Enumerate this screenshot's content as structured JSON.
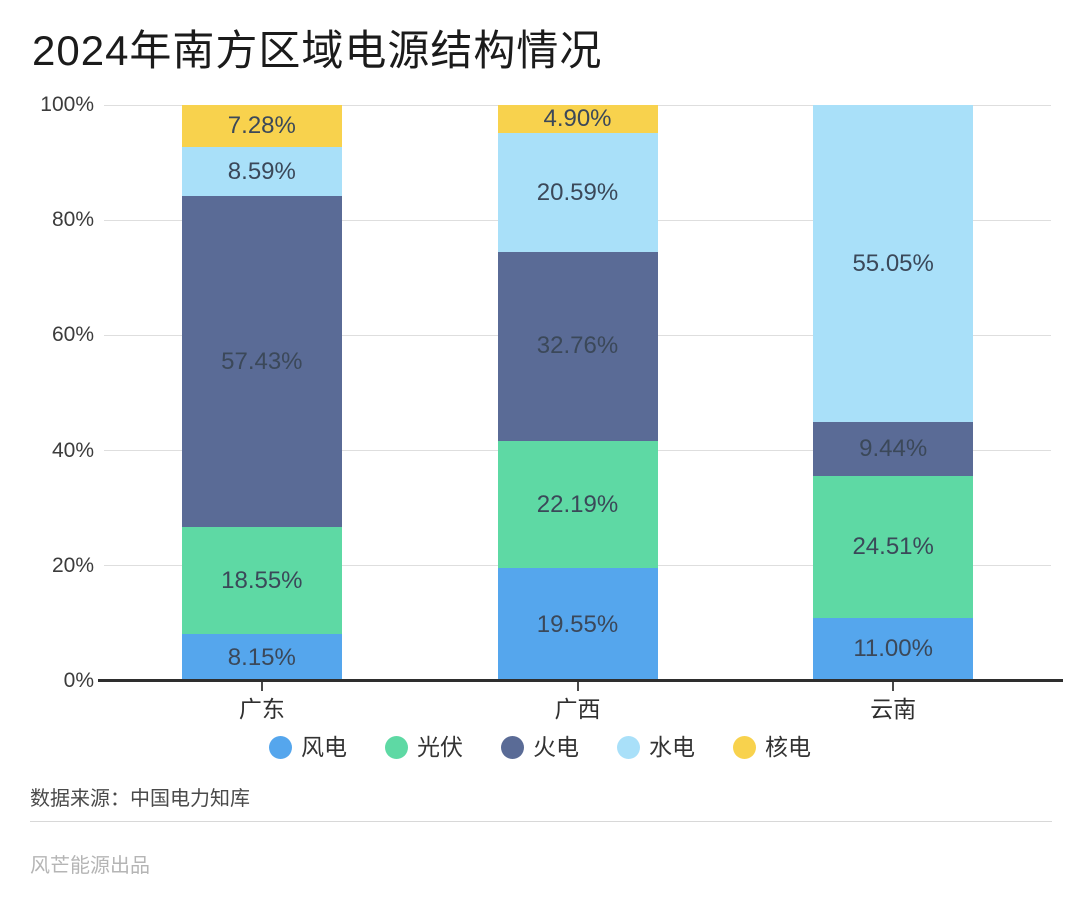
{
  "chart_data": {
    "type": "bar",
    "stacked": true,
    "title": "2024年南方区域电源结构情况",
    "categories": [
      "广东",
      "广西",
      "云南"
    ],
    "series": [
      {
        "key": "wind",
        "name": "风电",
        "color": "#55A6ED",
        "values": [
          8.15,
          19.55,
          11.0
        ],
        "labels": [
          "8.15%",
          "19.55%",
          "11.00%"
        ]
      },
      {
        "key": "solar",
        "name": "光伏",
        "color": "#5ED9A4",
        "values": [
          18.55,
          22.19,
          24.51
        ],
        "labels": [
          "18.55%",
          "22.19%",
          "24.51%"
        ]
      },
      {
        "key": "thermal",
        "name": "火电",
        "color": "#5A6B96",
        "values": [
          57.43,
          32.76,
          9.44
        ],
        "labels": [
          "57.43%",
          "32.76%",
          "9.44%"
        ]
      },
      {
        "key": "hydro",
        "name": "水电",
        "color": "#A9E0F9",
        "values": [
          8.59,
          20.59,
          55.05
        ],
        "labels": [
          "8.59%",
          "20.59%",
          "55.05%"
        ]
      },
      {
        "key": "nuclear",
        "name": "核电",
        "color": "#F8D24D",
        "values": [
          7.28,
          4.9,
          0
        ],
        "labels": [
          "7.28%",
          "4.90%",
          ""
        ]
      }
    ],
    "ylim": [
      0,
      100
    ],
    "yticks": [
      0,
      20,
      40,
      60,
      80,
      100
    ],
    "ytick_labels": [
      "0%",
      "20%",
      "40%",
      "60%",
      "80%",
      "100%"
    ],
    "grid": true,
    "legend_position": "bottom",
    "segment_label_color": "#3B4859"
  },
  "footer": {
    "source": "数据来源：中国电力知库",
    "brand": "风芒能源出品"
  }
}
